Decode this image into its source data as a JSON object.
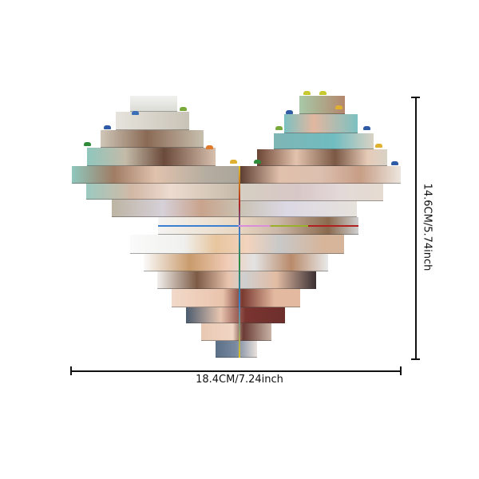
{
  "product": {
    "width_label": "18.4CM/7.24inch",
    "height_label": "14.6CM/5.74inch",
    "image": "heart-shaped-photo-brick-puzzle-family-collage"
  }
}
